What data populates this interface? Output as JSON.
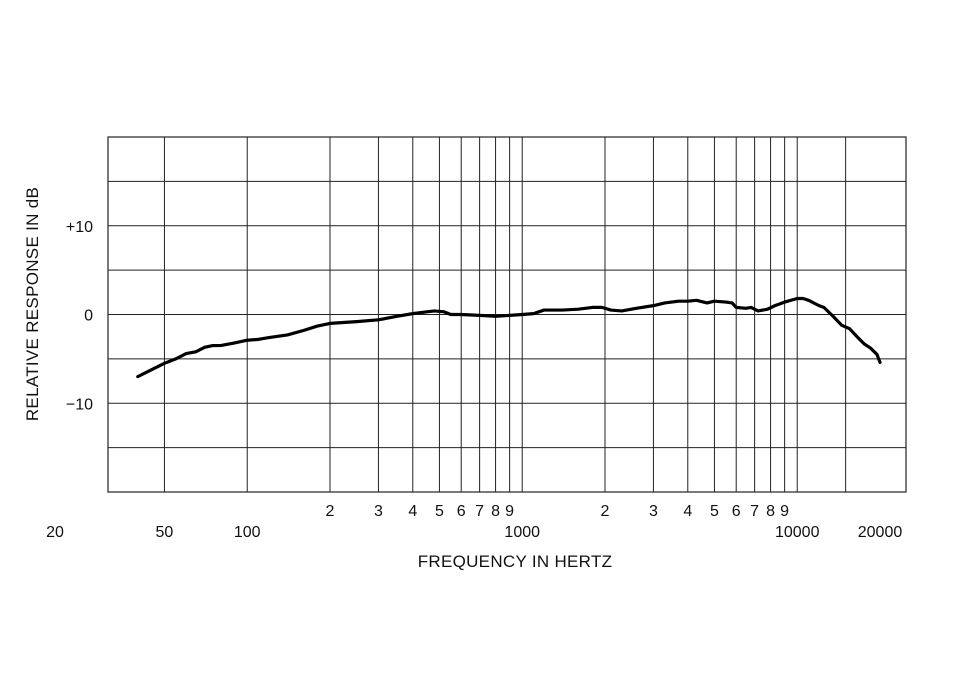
{
  "chart_data": {
    "type": "line",
    "x_scale": "log",
    "xlim": [
      20,
      20000
    ],
    "ylim": [
      -20,
      20
    ],
    "grid": true,
    "xlabel": "FREQUENCY IN HERTZ",
    "ylabel": "RELATIVE RESPONSE IN dB",
    "x_tick_labels": [
      {
        "value": 20,
        "label": "20"
      },
      {
        "value": 50,
        "label": "50"
      },
      {
        "value": 100,
        "label": "100"
      },
      {
        "value": 200,
        "label": "2"
      },
      {
        "value": 300,
        "label": "3"
      },
      {
        "value": 400,
        "label": "4"
      },
      {
        "value": 500,
        "label": "5"
      },
      {
        "value": 600,
        "label": "6"
      },
      {
        "value": 700,
        "label": "7"
      },
      {
        "value": 800,
        "label": "8"
      },
      {
        "value": 900,
        "label": "9"
      },
      {
        "value": 1000,
        "label": "1000"
      },
      {
        "value": 2000,
        "label": "2"
      },
      {
        "value": 3000,
        "label": "3"
      },
      {
        "value": 4000,
        "label": "4"
      },
      {
        "value": 5000,
        "label": "5"
      },
      {
        "value": 6000,
        "label": "6"
      },
      {
        "value": 7000,
        "label": "7"
      },
      {
        "value": 8000,
        "label": "8"
      },
      {
        "value": 9000,
        "label": "9"
      },
      {
        "value": 10000,
        "label": "10000"
      },
      {
        "value": 20000,
        "label": "20000"
      }
    ],
    "x_gridlines": [
      50,
      100,
      200,
      300,
      400,
      500,
      600,
      700,
      800,
      900,
      1000,
      2000,
      3000,
      4000,
      5000,
      6000,
      7000,
      8000,
      9000,
      10000,
      15000
    ],
    "y_tick_labels": [
      {
        "value": 10,
        "label": "+10"
      },
      {
        "value": 0,
        "label": "0"
      },
      {
        "value": -10,
        "label": "−10"
      }
    ],
    "y_gridlines": [
      -15,
      -10,
      -5,
      0,
      5,
      10,
      15
    ],
    "series": [
      {
        "points": [
          [
            40,
            -7.0
          ],
          [
            45,
            -6.2
          ],
          [
            50,
            -5.5
          ],
          [
            55,
            -5.0
          ],
          [
            60,
            -4.4
          ],
          [
            65,
            -4.2
          ],
          [
            70,
            -3.7
          ],
          [
            75,
            -3.5
          ],
          [
            80,
            -3.5
          ],
          [
            90,
            -3.2
          ],
          [
            100,
            -2.9
          ],
          [
            110,
            -2.8
          ],
          [
            120,
            -2.6
          ],
          [
            140,
            -2.3
          ],
          [
            160,
            -1.8
          ],
          [
            180,
            -1.3
          ],
          [
            200,
            -1.0
          ],
          [
            250,
            -0.8
          ],
          [
            300,
            -0.6
          ],
          [
            350,
            -0.2
          ],
          [
            400,
            0.1
          ],
          [
            450,
            0.3
          ],
          [
            480,
            0.4
          ],
          [
            520,
            0.3
          ],
          [
            550,
            0.0
          ],
          [
            600,
            0.0
          ],
          [
            700,
            -0.1
          ],
          [
            800,
            -0.2
          ],
          [
            900,
            -0.1
          ],
          [
            1000,
            0.0
          ],
          [
            1100,
            0.1
          ],
          [
            1200,
            0.5
          ],
          [
            1400,
            0.5
          ],
          [
            1600,
            0.6
          ],
          [
            1800,
            0.8
          ],
          [
            1950,
            0.8
          ],
          [
            2100,
            0.5
          ],
          [
            2300,
            0.4
          ],
          [
            2600,
            0.7
          ],
          [
            3000,
            1.0
          ],
          [
            3300,
            1.3
          ],
          [
            3700,
            1.5
          ],
          [
            4000,
            1.5
          ],
          [
            4300,
            1.6
          ],
          [
            4700,
            1.3
          ],
          [
            5000,
            1.5
          ],
          [
            5500,
            1.4
          ],
          [
            5800,
            1.3
          ],
          [
            6000,
            0.8
          ],
          [
            6500,
            0.7
          ],
          [
            6800,
            0.8
          ],
          [
            7200,
            0.4
          ],
          [
            7800,
            0.6
          ],
          [
            8300,
            1.0
          ],
          [
            9000,
            1.4
          ],
          [
            10000,
            1.8
          ],
          [
            10500,
            1.8
          ],
          [
            11000,
            1.6
          ],
          [
            12000,
            1.0
          ],
          [
            12500,
            0.8
          ],
          [
            13500,
            -0.2
          ],
          [
            14500,
            -1.2
          ],
          [
            15500,
            -1.6
          ],
          [
            16500,
            -2.5
          ],
          [
            17500,
            -3.3
          ],
          [
            18500,
            -3.8
          ],
          [
            19500,
            -4.5
          ],
          [
            20000,
            -5.4
          ]
        ]
      }
    ]
  }
}
